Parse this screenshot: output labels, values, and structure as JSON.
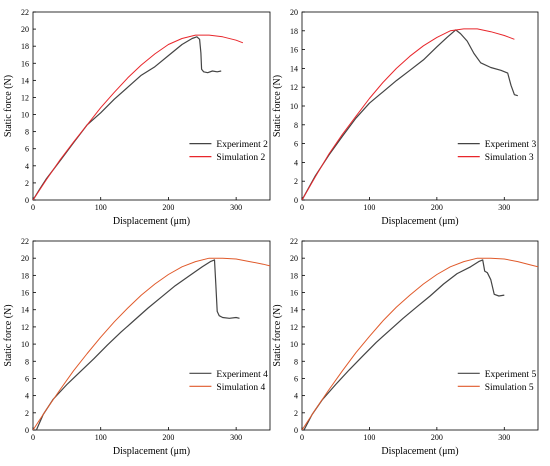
{
  "charts": [
    {
      "type": "line",
      "xlabel": "Displacement (μm)",
      "ylabel": "Static force (N)",
      "xlim": [
        0,
        350
      ],
      "ylim": [
        0,
        22
      ],
      "xticks": [
        0,
        100,
        200,
        300
      ],
      "yticks": [
        0,
        2,
        4,
        6,
        8,
        10,
        12,
        14,
        16,
        18,
        20,
        22
      ],
      "legend_position": "right-middle",
      "series": [
        {
          "name": "Experiment 2",
          "color": "#444444",
          "x": [
            0,
            10,
            20,
            40,
            60,
            80,
            100,
            120,
            140,
            160,
            180,
            200,
            220,
            235,
            242,
            246,
            248,
            249,
            252,
            258,
            265,
            272,
            278
          ],
          "y": [
            0,
            1.3,
            2.5,
            4.6,
            6.7,
            8.8,
            10.2,
            11.8,
            13.2,
            14.6,
            15.6,
            16.9,
            18.2,
            18.9,
            19.1,
            18.8,
            17.2,
            15.3,
            15.0,
            14.9,
            15.1,
            15.0,
            15.1
          ]
        },
        {
          "name": "Simulation 2",
          "color": "#e8262b",
          "x": [
            0,
            20,
            40,
            60,
            80,
            100,
            120,
            140,
            160,
            180,
            200,
            220,
            240,
            260,
            280,
            300,
            310
          ],
          "y": [
            0,
            2.4,
            4.7,
            6.8,
            8.8,
            10.8,
            12.6,
            14.3,
            15.8,
            17.1,
            18.2,
            18.9,
            19.3,
            19.3,
            19.1,
            18.7,
            18.4
          ]
        }
      ]
    },
    {
      "type": "line",
      "xlabel": "Displacement (μm)",
      "ylabel": "Static force (N)",
      "xlim": [
        0,
        350
      ],
      "ylim": [
        0,
        20
      ],
      "xticks": [
        0,
        100,
        200,
        300
      ],
      "yticks": [
        0,
        2,
        4,
        6,
        8,
        10,
        12,
        14,
        16,
        18,
        20
      ],
      "legend_position": "right-middle",
      "series": [
        {
          "name": "Experiment 3",
          "color": "#444444",
          "x": [
            0,
            10,
            20,
            40,
            60,
            80,
            100,
            120,
            140,
            160,
            180,
            200,
            215,
            228,
            235,
            245,
            255,
            265,
            280,
            295,
            305,
            310,
            315,
            320
          ],
          "y": [
            0,
            1.3,
            2.6,
            4.8,
            6.8,
            8.7,
            10.3,
            11.5,
            12.7,
            13.8,
            14.9,
            16.3,
            17.3,
            18.1,
            17.7,
            16.9,
            15.6,
            14.6,
            14.1,
            13.8,
            13.5,
            12.2,
            11.2,
            11.1
          ]
        },
        {
          "name": "Simulation 3",
          "color": "#e8262b",
          "x": [
            0,
            20,
            40,
            60,
            80,
            100,
            120,
            140,
            160,
            180,
            200,
            220,
            240,
            260,
            280,
            300,
            315
          ],
          "y": [
            0,
            2.5,
            4.9,
            7.0,
            8.9,
            10.8,
            12.5,
            14.0,
            15.3,
            16.4,
            17.3,
            18.0,
            18.2,
            18.2,
            17.9,
            17.5,
            17.1
          ]
        }
      ]
    },
    {
      "type": "line",
      "xlabel": "Displacement (μm)",
      "ylabel": "Static force (N)",
      "xlim": [
        0,
        350
      ],
      "ylim": [
        0,
        22
      ],
      "xticks": [
        0,
        100,
        200,
        300
      ],
      "yticks": [
        0,
        2,
        4,
        6,
        8,
        10,
        12,
        14,
        16,
        18,
        20,
        22
      ],
      "legend_position": "right-middle",
      "series": [
        {
          "name": "Experiment 4",
          "color": "#444444",
          "x": [
            5,
            15,
            30,
            50,
            70,
            90,
            110,
            130,
            150,
            170,
            190,
            210,
            230,
            250,
            262,
            268,
            270,
            272,
            275,
            280,
            290,
            300,
            305
          ],
          "y": [
            0,
            1.8,
            3.6,
            5.3,
            6.8,
            8.3,
            9.9,
            11.4,
            12.8,
            14.2,
            15.5,
            16.8,
            17.9,
            19.0,
            19.6,
            19.8,
            17.0,
            13.8,
            13.3,
            13.1,
            13.0,
            13.1,
            13.0
          ]
        },
        {
          "name": "Simulation 4",
          "color": "#e05a2b",
          "x": [
            0,
            20,
            40,
            60,
            80,
            100,
            120,
            140,
            160,
            180,
            200,
            220,
            240,
            260,
            280,
            300,
            320,
            340,
            350
          ],
          "y": [
            0,
            2.4,
            4.7,
            6.9,
            8.9,
            10.8,
            12.6,
            14.2,
            15.7,
            17.0,
            18.1,
            19.0,
            19.6,
            20.0,
            20.0,
            19.9,
            19.6,
            19.3,
            19.1
          ]
        }
      ]
    },
    {
      "type": "line",
      "xlabel": "Displacement (μm)",
      "ylabel": "Static force (N)",
      "xlim": [
        0,
        350
      ],
      "ylim": [
        0,
        22
      ],
      "xticks": [
        0,
        100,
        200,
        300
      ],
      "yticks": [
        0,
        2,
        4,
        6,
        8,
        10,
        12,
        14,
        16,
        18,
        20,
        22
      ],
      "legend_position": "right-middle",
      "series": [
        {
          "name": "Experiment 5",
          "color": "#444444",
          "x": [
            3,
            15,
            30,
            50,
            70,
            90,
            110,
            130,
            150,
            170,
            190,
            210,
            230,
            250,
            262,
            268,
            271,
            275,
            280,
            285,
            292,
            300
          ],
          "y": [
            0,
            1.8,
            3.5,
            5.3,
            7.0,
            8.6,
            10.2,
            11.6,
            13.0,
            14.3,
            15.6,
            17.0,
            18.2,
            19.0,
            19.6,
            19.8,
            18.5,
            18.3,
            17.5,
            15.8,
            15.6,
            15.7
          ]
        },
        {
          "name": "Simulation 5",
          "color": "#e05a2b",
          "x": [
            0,
            20,
            40,
            60,
            80,
            100,
            120,
            140,
            160,
            180,
            200,
            220,
            240,
            260,
            280,
            300,
            320,
            340,
            350
          ],
          "y": [
            0,
            2.4,
            4.7,
            6.9,
            9.0,
            10.9,
            12.7,
            14.3,
            15.7,
            17.0,
            18.1,
            19.0,
            19.6,
            20.0,
            20.0,
            19.9,
            19.6,
            19.2,
            19.0
          ]
        }
      ]
    }
  ]
}
